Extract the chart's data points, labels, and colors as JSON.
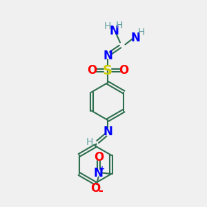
{
  "bg_color": "#f0f0f0",
  "bond_color": "#2d6e4e",
  "N_color": "#0000ff",
  "O_color": "#ff0000",
  "S_color": "#cccc00",
  "H_color": "#5f9ea0",
  "label_fontsize": 12,
  "small_fontsize": 10,
  "figsize": [
    3.0,
    3.0
  ],
  "dpi": 100,
  "xlim": [
    0,
    10
  ],
  "ylim": [
    0,
    10
  ]
}
